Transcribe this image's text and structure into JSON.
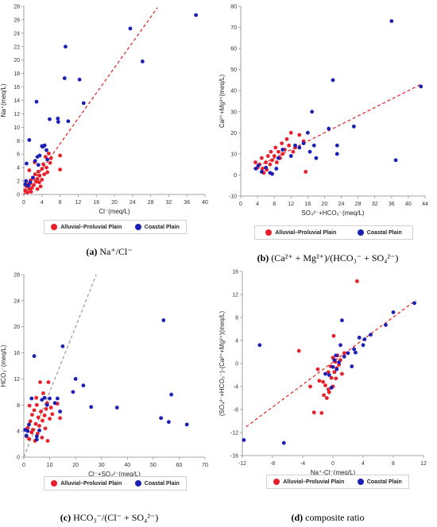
{
  "colors": {
    "alluvial": "#e8202a",
    "coastal": "#1c1fb5",
    "fit_red": "#e02020",
    "fit_gray": "#9a9a9a"
  },
  "chart_data": [
    {
      "id": "a",
      "type": "scatter",
      "caption_letter": "(a)",
      "caption_rest": " Na⁺/Cl⁻",
      "xlabel": "Cl⁻(meq/L)",
      "ylabel": "Na⁺(meq/L)",
      "xlim": [
        0,
        40
      ],
      "ylim": [
        0,
        28
      ],
      "xticks": [
        0,
        4,
        8,
        12,
        16,
        20,
        24,
        28,
        32,
        36,
        40
      ],
      "yticks": [
        0,
        2,
        4,
        6,
        8,
        10,
        12,
        14,
        16,
        18,
        20,
        22,
        24,
        26,
        28
      ],
      "line": {
        "style": "dashed",
        "color": "red",
        "x": [
          0,
          29.5
        ],
        "y": [
          0,
          27.8
        ]
      },
      "legend": [
        "Alluvial–Proluvial Plain",
        "Coastal Plain"
      ],
      "series": [
        {
          "name": "Alluvial–Proluvial Plain",
          "color": "red",
          "points": [
            [
              0.3,
              0.6
            ],
            [
              0.6,
              1.2
            ],
            [
              0.8,
              0.3
            ],
            [
              1,
              1.5
            ],
            [
              1.3,
              0.8
            ],
            [
              1.5,
              2.1
            ],
            [
              1.8,
              1.0
            ],
            [
              2,
              2.5
            ],
            [
              2.2,
              1.4
            ],
            [
              2.5,
              3.0
            ],
            [
              2.7,
              1.9
            ],
            [
              3,
              0.8
            ],
            [
              3,
              2.3
            ],
            [
              3.2,
              3.4
            ],
            [
              3.5,
              2.8
            ],
            [
              3.7,
              1.2
            ],
            [
              4,
              3.8
            ],
            [
              4,
              2.2
            ],
            [
              4.3,
              4.5
            ],
            [
              4.5,
              3.0
            ],
            [
              4.8,
              5.6
            ],
            [
              5,
              4.0
            ],
            [
              5.2,
              3.3
            ],
            [
              5.5,
              6.1
            ],
            [
              5.8,
              4.7
            ],
            [
              6,
              5.4
            ],
            [
              2.4,
              4.8
            ],
            [
              1.2,
              3.6
            ],
            [
              8,
              3.7
            ],
            [
              8,
              5.8
            ],
            [
              1.6,
              0.4
            ],
            [
              3.4,
              1.8
            ]
          ]
        },
        {
          "name": "Coastal Plain",
          "color": "blue",
          "points": [
            [
              0.3,
              1.5
            ],
            [
              0.5,
              2.0
            ],
            [
              0.6,
              4.6
            ],
            [
              1,
              1.3
            ],
            [
              1.2,
              8.1
            ],
            [
              1.4,
              1.8
            ],
            [
              2,
              2.5
            ],
            [
              2.5,
              5.0
            ],
            [
              2.8,
              13.8
            ],
            [
              3,
              5.6
            ],
            [
              3.2,
              4.4
            ],
            [
              3.5,
              5.8
            ],
            [
              4,
              7.2
            ],
            [
              4.2,
              7.1
            ],
            [
              4.6,
              7.3
            ],
            [
              5,
              6.6
            ],
            [
              5.2,
              5.2
            ],
            [
              5.7,
              11.2
            ],
            [
              7.5,
              11.3
            ],
            [
              7.6,
              10.8
            ],
            [
              9,
              17.3
            ],
            [
              9.2,
              22.0
            ],
            [
              9.8,
              10.9
            ],
            [
              12.3,
              17.1
            ],
            [
              13.2,
              13.6
            ],
            [
              23.5,
              24.7
            ],
            [
              26.2,
              19.8
            ],
            [
              38,
              26.7
            ]
          ]
        }
      ]
    },
    {
      "id": "b",
      "type": "scatter",
      "caption_letter": "(b)",
      "caption_rest": " (Ca²⁺ + Mg²⁺)/(HCO₃⁻ + SO₄²⁻)",
      "xlabel": "SO₄²⁻+HCO₃⁻(meq/L)",
      "ylabel": "Ca²⁺+Mg²⁺(meq/L)",
      "xlim": [
        0,
        44
      ],
      "ylim": [
        -10,
        80
      ],
      "xticks": [
        0,
        4,
        8,
        12,
        16,
        20,
        24,
        28,
        32,
        36,
        40,
        44
      ],
      "yticks": [
        -10,
        0,
        10,
        20,
        30,
        40,
        50,
        60,
        70,
        80
      ],
      "line": {
        "style": "dashed",
        "color": "red",
        "x": [
          3,
          43
        ],
        "y": [
          3,
          43
        ]
      },
      "legend": [
        "Alluvial–Proluvial Plain",
        "Coastal Plain"
      ],
      "series": [
        {
          "name": "Alluvial–Proluvial Plain",
          "color": "red",
          "points": [
            [
              3.5,
              6
            ],
            [
              4,
              3.5
            ],
            [
              4.5,
              5
            ],
            [
              5,
              8
            ],
            [
              5.2,
              3
            ],
            [
              5.5,
              1
            ],
            [
              6,
              6
            ],
            [
              6.5,
              9
            ],
            [
              7,
              5
            ],
            [
              7.2,
              11
            ],
            [
              7.5,
              7
            ],
            [
              8,
              9
            ],
            [
              8.3,
              13
            ],
            [
              8.6,
              6
            ],
            [
              9,
              11
            ],
            [
              9.4,
              8
            ],
            [
              9.8,
              15
            ],
            [
              10,
              10
            ],
            [
              10.5,
              12
            ],
            [
              11,
              17
            ],
            [
              11.5,
              14
            ],
            [
              12,
              20
            ],
            [
              12.5,
              11
            ],
            [
              13,
              13
            ],
            [
              14,
              19
            ],
            [
              15,
              16
            ],
            [
              15.5,
              1.5
            ],
            [
              6.2,
              2.5
            ]
          ]
        },
        {
          "name": "Coastal Plain",
          "color": "blue",
          "points": [
            [
              3.6,
              3
            ],
            [
              4.2,
              4.5
            ],
            [
              5,
              1.5
            ],
            [
              6,
              3.5
            ],
            [
              7,
              1
            ],
            [
              7.5,
              0.5
            ],
            [
              8.5,
              3
            ],
            [
              9,
              8
            ],
            [
              10,
              12
            ],
            [
              12,
              9
            ],
            [
              13,
              14
            ],
            [
              14,
              13
            ],
            [
              15,
              15
            ],
            [
              16,
              20
            ],
            [
              16.5,
              11
            ],
            [
              17,
              30
            ],
            [
              17.5,
              14
            ],
            [
              18,
              8
            ],
            [
              21,
              22
            ],
            [
              22,
              45
            ],
            [
              23,
              14
            ],
            [
              23,
              10
            ],
            [
              27,
              23
            ],
            [
              36,
              73
            ],
            [
              37,
              7
            ],
            [
              43,
              42
            ]
          ]
        }
      ]
    },
    {
      "id": "c",
      "type": "scatter",
      "caption_letter": "(c)",
      "caption_rest": " HCO₃⁻/(Cl⁻ + SO₄²⁻)",
      "xlabel": "Cl⁻+SO₄²⁻(meq/L)",
      "ylabel": "HCO₃⁻(meq/L)",
      "xlim": [
        0,
        70
      ],
      "ylim": [
        0,
        28
      ],
      "xticks": [
        0,
        10,
        20,
        30,
        40,
        50,
        60,
        70
      ],
      "yticks": [
        0,
        4,
        8,
        12,
        16,
        20,
        24,
        28
      ],
      "line": {
        "style": "dashed",
        "color": "gray",
        "x": [
          0,
          28
        ],
        "y": [
          0,
          28
        ]
      },
      "legend": [
        "Alluvial–Proluvial Plain",
        "Coastal Plain"
      ],
      "series": [
        {
          "name": "Alluvial–Proluvial Plain",
          "color": "red",
          "points": [
            [
              1,
              3.2
            ],
            [
              1.5,
              4.5
            ],
            [
              2,
              2.8
            ],
            [
              2.5,
              5.5
            ],
            [
              3,
              3.8
            ],
            [
              3.2,
              6.5
            ],
            [
              3.5,
              4.2
            ],
            [
              4,
              7.2
            ],
            [
              4.3,
              2.5
            ],
            [
              4.6,
              5.1
            ],
            [
              5,
              8.0
            ],
            [
              5.3,
              3.6
            ],
            [
              5.6,
              6.1
            ],
            [
              6,
              4.8
            ],
            [
              6.3,
              11.5
            ],
            [
              6.6,
              7.0
            ],
            [
              7,
              3.0
            ],
            [
              7.2,
              5.6
            ],
            [
              7.5,
              9.8
            ],
            [
              8,
              6.4
            ],
            [
              8.3,
              4.4
            ],
            [
              8.6,
              7.4
            ],
            [
              9,
              8.3
            ],
            [
              9.2,
              2.5
            ],
            [
              9.5,
              11.5
            ],
            [
              10,
              5.9
            ],
            [
              10.5,
              7.6
            ],
            [
              11,
              6.6
            ],
            [
              13,
              8.2
            ],
            [
              14,
              6.0
            ],
            [
              4.8,
              9.1
            ],
            [
              2.2,
              7.9
            ]
          ]
        },
        {
          "name": "Coastal Plain",
          "color": "blue",
          "points": [
            [
              0.5,
              4.2
            ],
            [
              1,
              3.3
            ],
            [
              1.5,
              4.0
            ],
            [
              2,
              5.0
            ],
            [
              3,
              9.0
            ],
            [
              4,
              15.5
            ],
            [
              5,
              2.7
            ],
            [
              5,
              3.2
            ],
            [
              6,
              4.1
            ],
            [
              7,
              8.8
            ],
            [
              8,
              9.1
            ],
            [
              9,
              8.0
            ],
            [
              10,
              9.0
            ],
            [
              12,
              8.3
            ],
            [
              13,
              9.0
            ],
            [
              14,
              7.0
            ],
            [
              15,
              17.0
            ],
            [
              19,
              10.0
            ],
            [
              20,
              12.0
            ],
            [
              23,
              11.0
            ],
            [
              26,
              7.7
            ],
            [
              36,
              7.6
            ],
            [
              53,
              6.0
            ],
            [
              54,
              21.0
            ],
            [
              56,
              5.4
            ],
            [
              57,
              9.6
            ],
            [
              63,
              5.0
            ]
          ]
        }
      ]
    },
    {
      "id": "d",
      "type": "scatter",
      "caption_letter": "(d)",
      "caption_rest": " composite ratio",
      "xlabel": "Na⁺-Cl⁻(meq/L)",
      "ylabel": "(SO₄²⁻+HCO₃⁻)-(Ca²⁺+Mg²⁺)(meq/L)",
      "xlim": [
        -12,
        12
      ],
      "ylim": [
        -16,
        16
      ],
      "xticks": [
        -12,
        -8,
        -4,
        0,
        4,
        8,
        12
      ],
      "yticks": [
        -16,
        -12,
        -8,
        -4,
        0,
        4,
        8,
        12,
        16
      ],
      "line": {
        "style": "dashed",
        "color": "red",
        "x": [
          -11.5,
          11
        ],
        "y": [
          -11,
          11
        ]
      },
      "legend": [
        "Alluvial–Proluvial Plain",
        "Coastal Plain"
      ],
      "series": [
        {
          "name": "Alluvial–Proluvial Plain",
          "color": "red",
          "points": [
            [
              -4.5,
              2.2
            ],
            [
              -3,
              -4
            ],
            [
              -2.5,
              -8.5
            ],
            [
              -2,
              -1
            ],
            [
              -1.8,
              -3
            ],
            [
              -1.5,
              -8.6
            ],
            [
              -1.2,
              -5.5
            ],
            [
              -1,
              -3.8
            ],
            [
              -0.8,
              -6
            ],
            [
              -0.6,
              -1.5
            ],
            [
              -0.5,
              -5
            ],
            [
              -0.3,
              -0.5
            ],
            [
              -0.2,
              -2.5
            ],
            [
              0,
              1
            ],
            [
              0,
              -4
            ],
            [
              0.1,
              4.8
            ],
            [
              0.2,
              -1.5
            ],
            [
              0.3,
              0.3
            ],
            [
              0.5,
              -0.8
            ],
            [
              0.6,
              1.4
            ],
            [
              0.8,
              -0.2
            ],
            [
              1,
              0.6
            ],
            [
              1.2,
              -1.8
            ],
            [
              1.5,
              1.8
            ],
            [
              3.2,
              14.3
            ],
            [
              -0.6,
              -4.5
            ],
            [
              0.4,
              -2.6
            ],
            [
              -1.3,
              -3.2
            ]
          ]
        },
        {
          "name": "Coastal Plain",
          "color": "blue",
          "points": [
            [
              -11.8,
              -13.3
            ],
            [
              -9.7,
              3.2
            ],
            [
              -6.5,
              -13.8
            ],
            [
              -1,
              -1.8
            ],
            [
              -0.5,
              -2
            ],
            [
              -0.2,
              -4.2
            ],
            [
              0,
              -0.6
            ],
            [
              0.2,
              0.6
            ],
            [
              0.4,
              1.4
            ],
            [
              0.5,
              -1
            ],
            [
              0.8,
              0.2
            ],
            [
              1,
              3.2
            ],
            [
              1.2,
              7.5
            ],
            [
              1.5,
              1.2
            ],
            [
              2,
              1.8
            ],
            [
              2.5,
              -0.5
            ],
            [
              2.8,
              2.5
            ],
            [
              3,
              1.9
            ],
            [
              3.5,
              4.5
            ],
            [
              4,
              3.2
            ],
            [
              4.2,
              4.2
            ],
            [
              5,
              5
            ],
            [
              7,
              6.7
            ],
            [
              8,
              8.9
            ],
            [
              10.8,
              10.5
            ]
          ]
        }
      ]
    }
  ]
}
